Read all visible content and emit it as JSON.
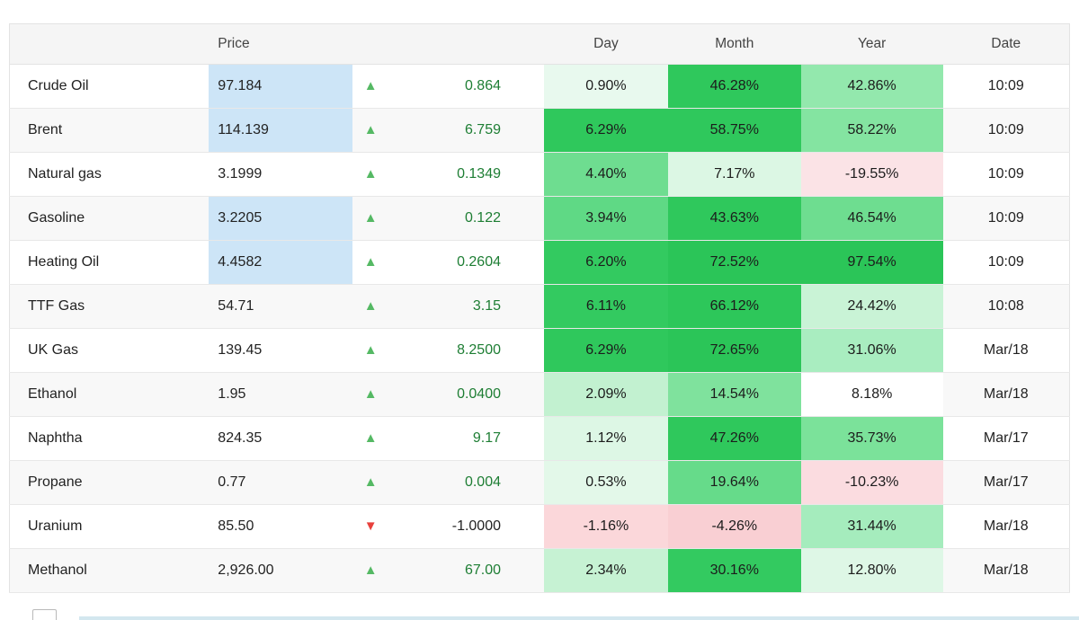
{
  "table": {
    "headers": {
      "name": "",
      "price": "Price",
      "arrow": "",
      "change": "",
      "day": "Day",
      "month": "Month",
      "year": "Year",
      "date": "Date"
    },
    "rows": [
      {
        "name": "Crude Oil",
        "price": "97.184",
        "price_highlight": true,
        "direction": "up",
        "change": "0.864",
        "day": {
          "text": "0.90%",
          "bg": "#e8f9ee"
        },
        "month": {
          "text": "46.28%",
          "bg": "#2fc85c"
        },
        "year": {
          "text": "42.86%",
          "bg": "#93e8ad"
        },
        "date": "10:09"
      },
      {
        "name": "Brent",
        "price": "114.139",
        "price_highlight": true,
        "direction": "up",
        "change": "6.759",
        "day": {
          "text": "6.29%",
          "bg": "#2fc85c"
        },
        "month": {
          "text": "58.75%",
          "bg": "#2fc85c"
        },
        "year": {
          "text": "58.22%",
          "bg": "#84e4a1"
        },
        "date": "10:09"
      },
      {
        "name": "Natural gas",
        "price": "3.1999",
        "price_highlight": false,
        "direction": "up",
        "change": "0.1349",
        "day": {
          "text": "4.40%",
          "bg": "#6edd90"
        },
        "month": {
          "text": "7.17%",
          "bg": "#dcf7e4"
        },
        "year": {
          "text": "-19.55%",
          "bg": "#fbe3e6"
        },
        "date": "10:09"
      },
      {
        "name": "Gasoline",
        "price": "3.2205",
        "price_highlight": true,
        "direction": "up",
        "change": "0.122",
        "day": {
          "text": "3.94%",
          "bg": "#5fd985"
        },
        "month": {
          "text": "43.63%",
          "bg": "#2fc85c"
        },
        "year": {
          "text": "46.54%",
          "bg": "#6edd90"
        },
        "date": "10:09"
      },
      {
        "name": "Heating Oil",
        "price": "4.4582",
        "price_highlight": true,
        "direction": "up",
        "change": "0.2604",
        "day": {
          "text": "6.20%",
          "bg": "#33ca60"
        },
        "month": {
          "text": "72.52%",
          "bg": "#2bc558"
        },
        "year": {
          "text": "97.54%",
          "bg": "#2bc558"
        },
        "date": "10:09"
      },
      {
        "name": "TTF Gas",
        "price": "54.71",
        "price_highlight": false,
        "direction": "up",
        "change": "3.15",
        "day": {
          "text": "6.11%",
          "bg": "#33ca60"
        },
        "month": {
          "text": "66.12%",
          "bg": "#2dc75a"
        },
        "year": {
          "text": "24.42%",
          "bg": "#c9f3d6"
        },
        "date": "10:08"
      },
      {
        "name": "UK Gas",
        "price": "139.45",
        "price_highlight": false,
        "direction": "up",
        "change": "8.2500",
        "day": {
          "text": "6.29%",
          "bg": "#2fc85c"
        },
        "month": {
          "text": "72.65%",
          "bg": "#2bc558"
        },
        "year": {
          "text": "31.06%",
          "bg": "#a9edc0"
        },
        "date": "Mar/18"
      },
      {
        "name": "Ethanol",
        "price": "1.95",
        "price_highlight": false,
        "direction": "up",
        "change": "0.0400",
        "day": {
          "text": "2.09%",
          "bg": "#c2f1d0"
        },
        "month": {
          "text": "14.54%",
          "bg": "#7fe29d"
        },
        "year": {
          "text": "8.18%",
          "bg": "#ffffff"
        },
        "date": "Mar/18"
      },
      {
        "name": "Naphtha",
        "price": "824.35",
        "price_highlight": false,
        "direction": "up",
        "change": "9.17",
        "day": {
          "text": "1.12%",
          "bg": "#ddf7e5"
        },
        "month": {
          "text": "47.26%",
          "bg": "#2fc85c"
        },
        "year": {
          "text": "35.73%",
          "bg": "#7be29a"
        },
        "date": "Mar/17"
      },
      {
        "name": "Propane",
        "price": "0.77",
        "price_highlight": false,
        "direction": "up",
        "change": "0.004",
        "day": {
          "text": "0.53%",
          "bg": "#e3f8e9"
        },
        "month": {
          "text": "19.64%",
          "bg": "#66db8a"
        },
        "year": {
          "text": "-10.23%",
          "bg": "#fbdce0"
        },
        "date": "Mar/17"
      },
      {
        "name": "Uranium",
        "price": "85.50",
        "price_highlight": false,
        "direction": "down",
        "change": "-1.0000",
        "day": {
          "text": "-1.16%",
          "bg": "#fbd7da"
        },
        "month": {
          "text": "-4.26%",
          "bg": "#f9cfd3"
        },
        "year": {
          "text": "31.44%",
          "bg": "#a5ecbd"
        },
        "date": "Mar/18"
      },
      {
        "name": "Methanol",
        "price": "2,926.00",
        "price_highlight": false,
        "direction": "up",
        "change": "67.00",
        "day": {
          "text": "2.34%",
          "bg": "#c6f2d3"
        },
        "month": {
          "text": "30.16%",
          "bg": "#33ca60"
        },
        "year": {
          "text": "12.80%",
          "bg": "#def7e6"
        },
        "date": "Mar/18"
      }
    ]
  },
  "icons": {
    "up": "▲",
    "down": "▼"
  },
  "colors": {
    "price_highlight": "#cde5f7",
    "up_arrow": "#55b964",
    "down_arrow": "#e8413c",
    "positive_change_text": "#1e7e34",
    "strong_green": "#2bc558",
    "light_red": "#fbdce0",
    "header_bg": "#f5f5f5"
  }
}
